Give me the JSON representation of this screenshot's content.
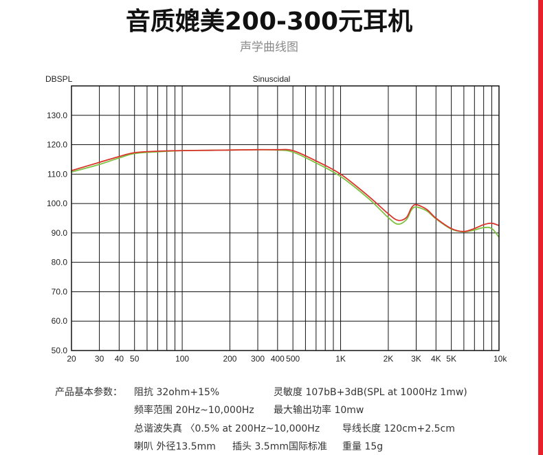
{
  "header": {
    "title": "音质媲美200-300元耳机",
    "subtitle": "声学曲线图"
  },
  "colors": {
    "accent": "#e8202a",
    "curve_red": "#d9342b",
    "curve_green": "#7dc242",
    "grid": "#111111"
  },
  "chart_data": {
    "type": "line",
    "title": "",
    "top_label": "Sinuscidal",
    "ylabel": "DBSPL",
    "xlabel": "",
    "x_scale": "log",
    "xlim": [
      20,
      10000
    ],
    "ylim": [
      50,
      140
    ],
    "grid": true,
    "y_ticks": [
      "50.0",
      "60.0",
      "70.0",
      "80.0",
      "90.0",
      "100.0",
      "110.0",
      "120.0",
      "130.0"
    ],
    "x_ticks": [
      {
        "value": 20,
        "label": "20"
      },
      {
        "value": 30,
        "label": "30"
      },
      {
        "value": 40,
        "label": "40"
      },
      {
        "value": 50,
        "label": "50"
      },
      {
        "value": 100,
        "label": "100"
      },
      {
        "value": 200,
        "label": "200"
      },
      {
        "value": 300,
        "label": "300"
      },
      {
        "value": 400,
        "label": "400"
      },
      {
        "value": 500,
        "label": "500"
      },
      {
        "value": 1000,
        "label": "1K"
      },
      {
        "value": 2000,
        "label": "2K"
      },
      {
        "value": 3000,
        "label": "3K"
      },
      {
        "value": 4000,
        "label": "4K"
      },
      {
        "value": 5000,
        "label": "5K"
      },
      {
        "value": 10000,
        "label": "10k"
      }
    ],
    "series": [
      {
        "color": "#d9342b",
        "x": [
          20,
          30,
          40,
          50,
          70,
          100,
          150,
          200,
          300,
          400,
          500,
          700,
          1000,
          1500,
          2000,
          2300,
          2600,
          2800,
          3000,
          3500,
          4000,
          5000,
          6000,
          7000,
          8000,
          9000,
          10000
        ],
        "y": [
          111.2,
          114.0,
          116.0,
          117.3,
          117.8,
          118.0,
          118.1,
          118.2,
          118.3,
          118.3,
          118.0,
          114.5,
          110.0,
          102.5,
          96.5,
          94.3,
          95.2,
          98.5,
          99.6,
          98.0,
          95.0,
          91.5,
          90.5,
          91.5,
          92.8,
          93.3,
          92.5
        ]
      },
      {
        "color": "#7dc242",
        "x": [
          20,
          30,
          40,
          50,
          70,
          100,
          150,
          200,
          300,
          400,
          500,
          700,
          1000,
          1500,
          2000,
          2300,
          2600,
          2800,
          3000,
          3500,
          4000,
          5000,
          6000,
          7000,
          8000,
          9000,
          10000
        ],
        "y": [
          110.7,
          113.3,
          115.5,
          117.0,
          117.6,
          118.0,
          118.1,
          118.2,
          118.3,
          118.2,
          117.5,
          113.8,
          109.2,
          101.7,
          95.2,
          93.0,
          94.5,
          97.8,
          98.8,
          97.5,
          94.8,
          91.3,
          90.4,
          91.0,
          91.8,
          91.5,
          88.5
        ]
      }
    ]
  },
  "specs": {
    "label": "产品基本参数：",
    "impedance": "阻抗  32ohm+15%",
    "sensitivity": "灵敏度  107bB+3dB(SPL at 1000Hz 1mw)",
    "freq_range": "频率范围  20Hz~10,000Hz",
    "max_power": "最大输出功率   10mw",
    "thd": "总谐波失真  〈0.5% at 200Hz~10,000Hz",
    "cable_length": "导线长度  120cm+2.5cm",
    "speaker": "喇叭  外径13.5mm",
    "plug": "插头  3.5mm国际标准",
    "weight": "重量  15g"
  }
}
